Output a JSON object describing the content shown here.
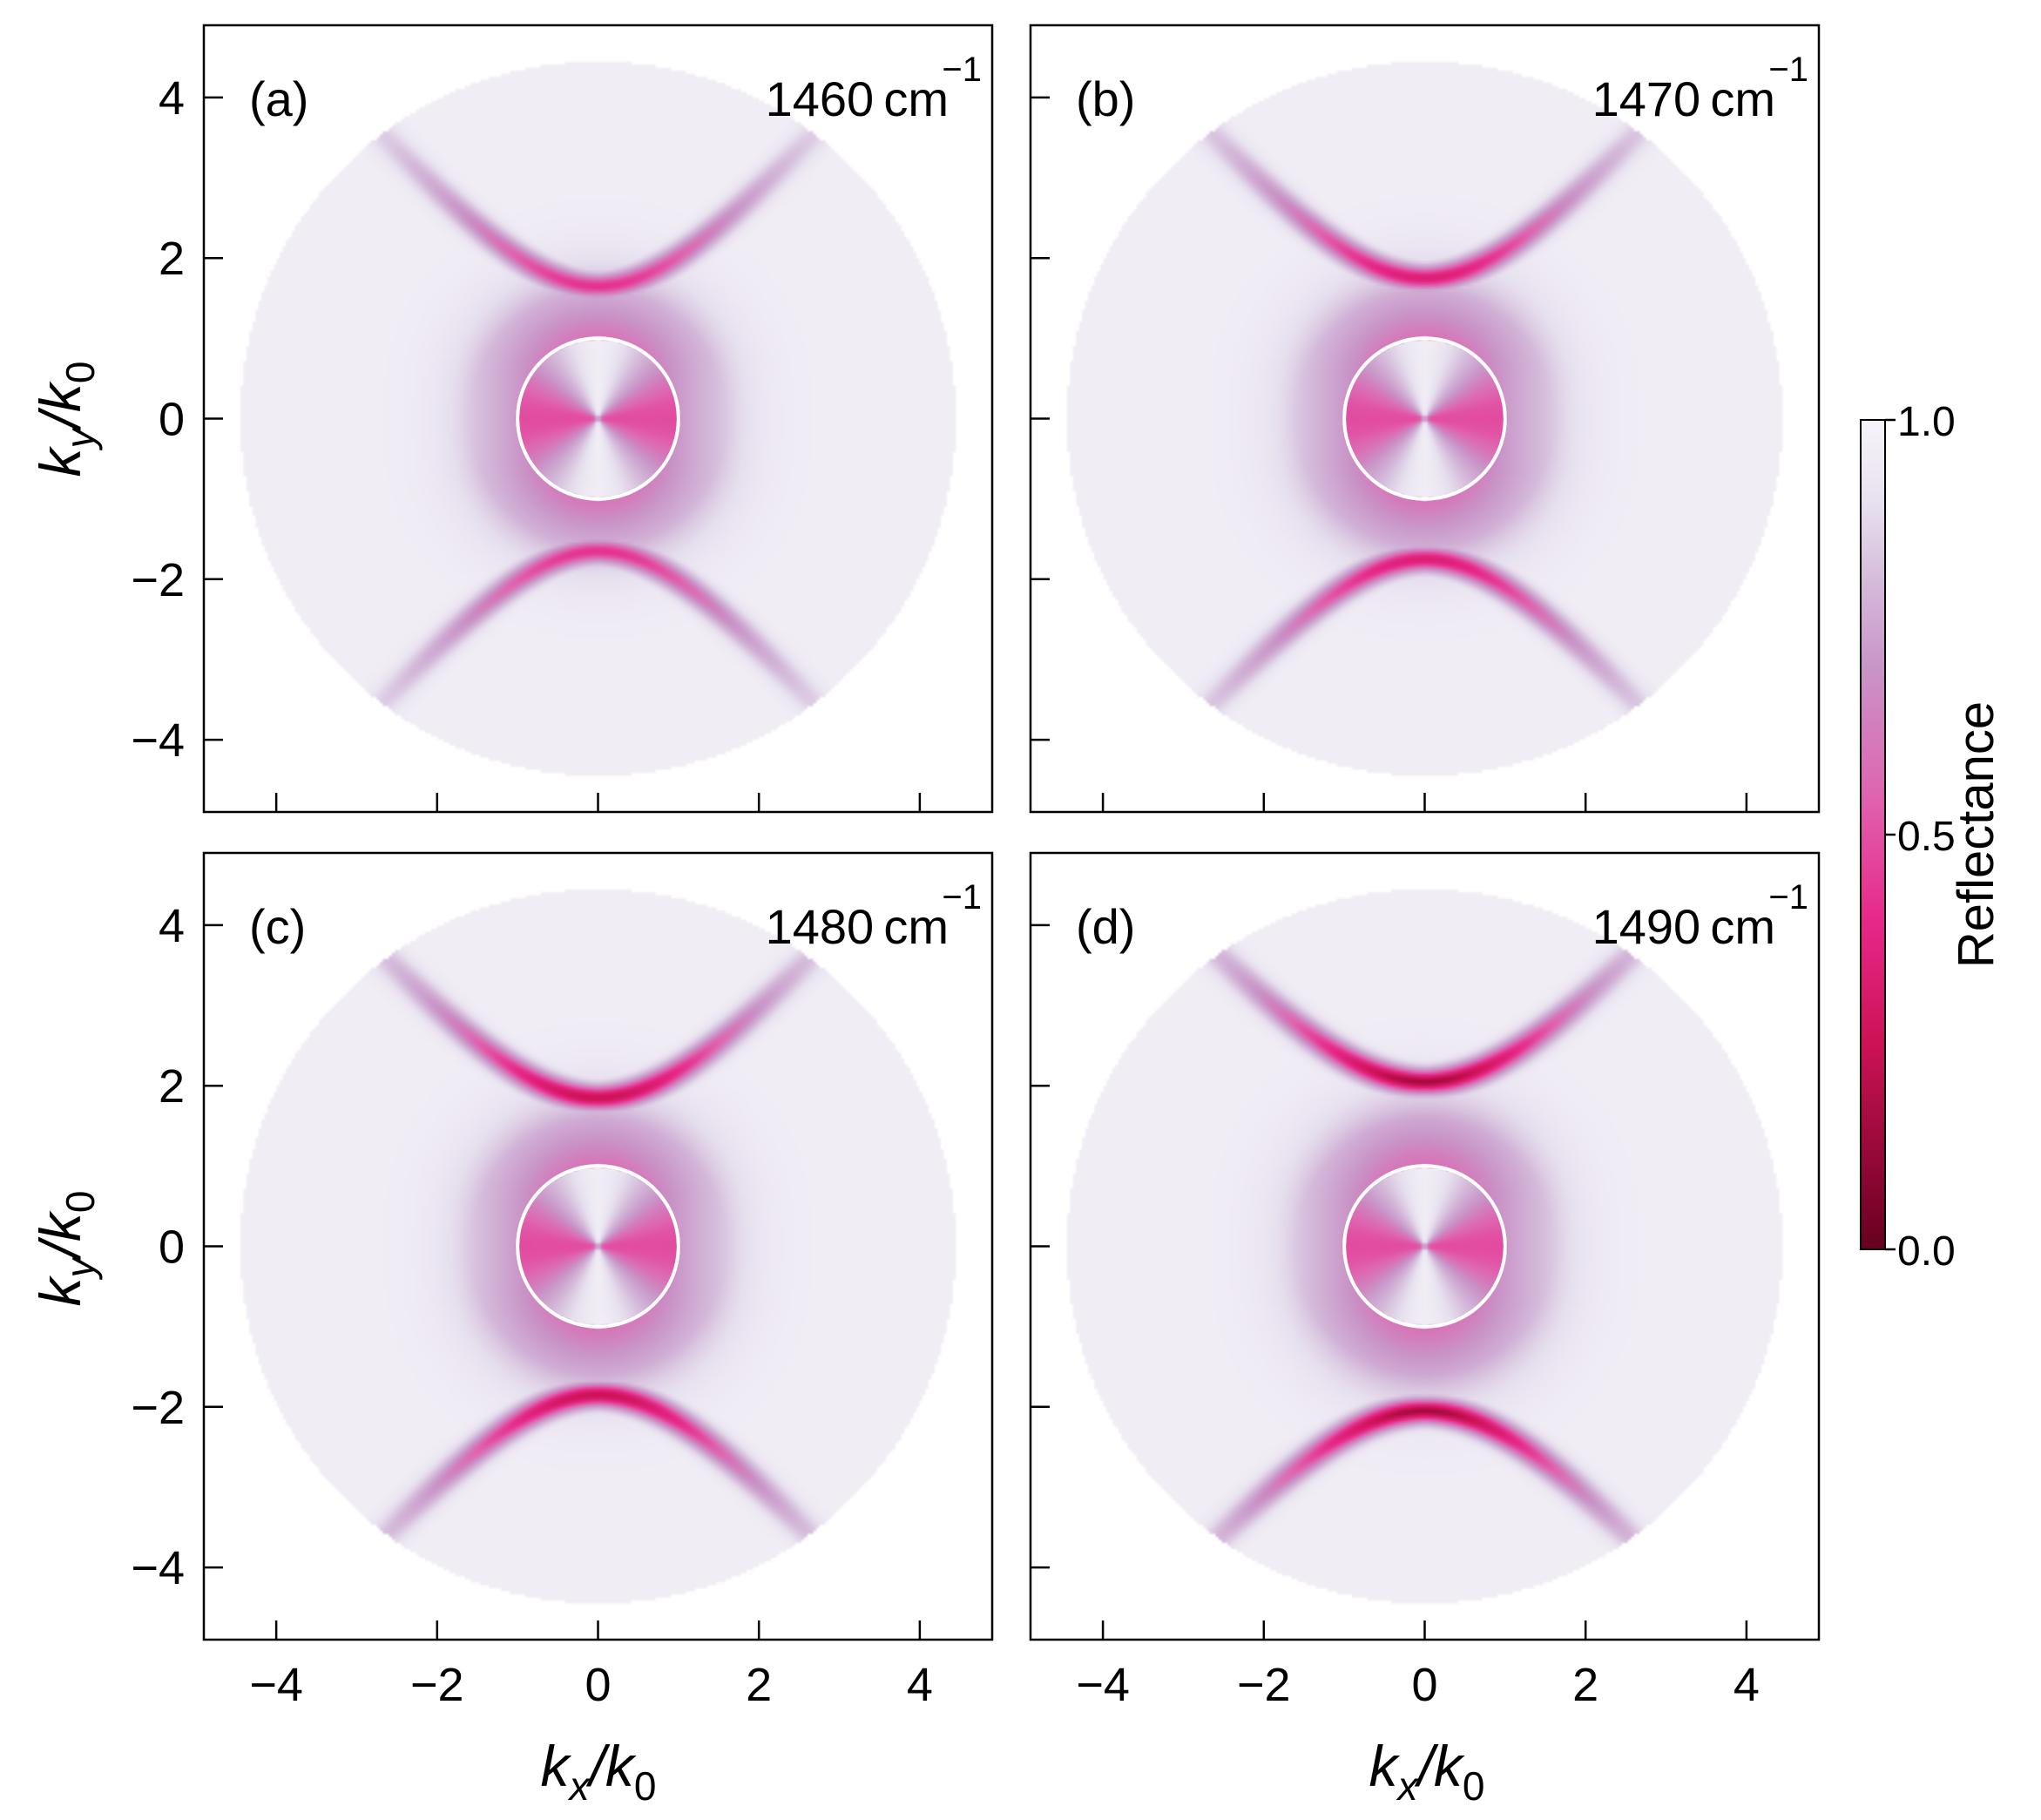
{
  "chart_data": {
    "type": "heatmap",
    "description_units": "k/k0",
    "colorbar": {
      "label": "Reflectance",
      "range": [
        0.0,
        1.0
      ],
      "ticks": [
        "0.0",
        "0.5",
        "1.0"
      ],
      "colors": [
        "#67001f",
        "#ce1256",
        "#e7298a",
        "#df65b0",
        "#c994c7",
        "#d4b9da",
        "#e7e1ef",
        "#f7f4f9"
      ]
    },
    "xlim": [
      -4.9,
      4.9
    ],
    "ylim": [
      -4.9,
      4.9
    ],
    "x_ticks": [
      "−4",
      "−2",
      "0",
      "2",
      "4"
    ],
    "y_ticks": [
      "4",
      "2",
      "0",
      "−2",
      "−4"
    ],
    "x_tick_values": [
      -4,
      -2,
      0,
      2,
      4
    ],
    "y_tick_values": [
      4,
      2,
      0,
      -2,
      -4
    ],
    "xlabel": {
      "base": "k",
      "sub": "x",
      "over": "/k",
      "sub2": "0"
    },
    "ylabel": {
      "base": "k",
      "sub": "y",
      "over": "/k",
      "sub2": "0"
    },
    "data_region_radius": 4.45,
    "light_cone_radius": 1.0,
    "panels": [
      {
        "label": "(a)",
        "wavenumber": "1460",
        "unit": "cm",
        "exponent": "−1",
        "band_center": 1.65,
        "band_min": 0.3
      },
      {
        "label": "(b)",
        "wavenumber": "1470",
        "unit": "cm",
        "exponent": "−1",
        "band_center": 1.75,
        "band_min": 0.22
      },
      {
        "label": "(c)",
        "wavenumber": "1480",
        "unit": "cm",
        "exponent": "−1",
        "band_center": 1.85,
        "band_min": 0.14
      },
      {
        "label": "(d)",
        "wavenumber": "1490",
        "unit": "cm",
        "exponent": "−1",
        "band_center": 2.05,
        "band_min": 0.08
      }
    ]
  }
}
